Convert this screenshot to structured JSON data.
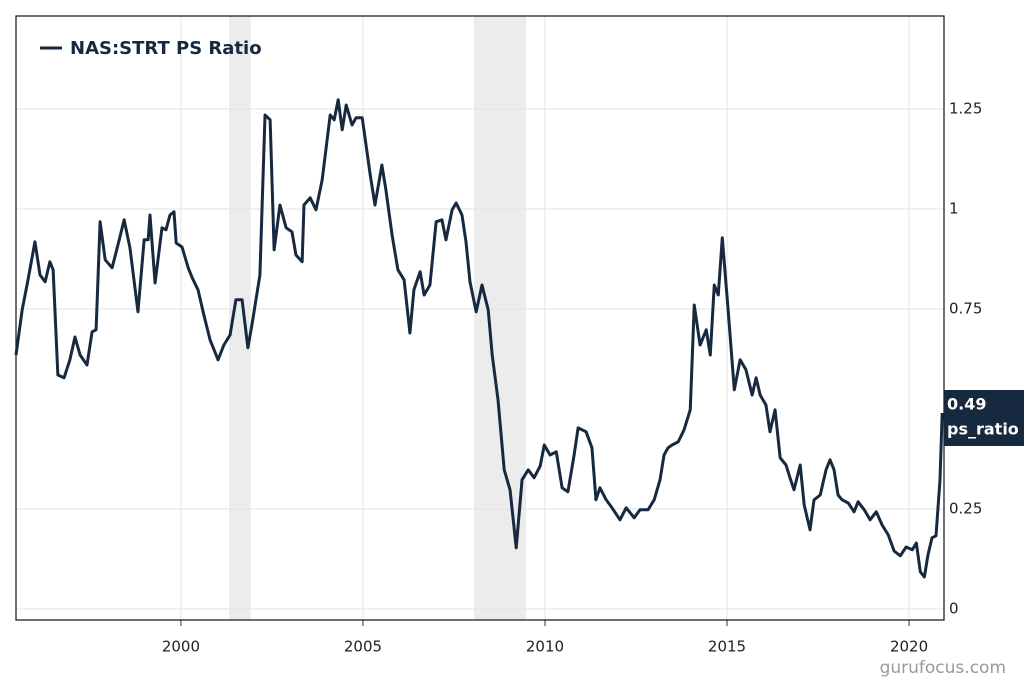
{
  "chart_data": {
    "type": "line",
    "legend": "NAS:STRT PS Ratio",
    "watermark": "gurufocus.com",
    "annotation": {
      "value": 0.49,
      "text": "ps_ratio"
    },
    "recessions": [
      [
        2001.32,
        2001.92
      ],
      [
        2008.05,
        2009.48
      ]
    ],
    "xlim": [
      1995.47,
      2020.96
    ],
    "xticks": [
      2000,
      2005,
      2010,
      2015,
      2020
    ],
    "ylim": [
      -0.0275,
      1.4825
    ],
    "yticks": [
      0,
      0.25,
      0.75,
      1,
      1.25
    ],
    "grid": true,
    "series": [
      {
        "name": "NAS:STRT PS Ratio",
        "color": "#17293f",
        "x": [
          1995.47,
          1995.64,
          1995.8,
          1995.99,
          1996.13,
          1996.27,
          1996.4,
          1996.49,
          1996.62,
          1996.79,
          1996.95,
          1997.09,
          1997.23,
          1997.42,
          1997.56,
          1997.67,
          1997.78,
          1997.92,
          1998.11,
          1998.27,
          1998.44,
          1998.6,
          1998.82,
          1998.99,
          1999.1,
          1999.15,
          1999.29,
          1999.48,
          1999.59,
          1999.7,
          1999.81,
          1999.87,
          2000.03,
          2000.2,
          2000.31,
          2000.47,
          2000.63,
          2000.8,
          2001.02,
          2001.18,
          2001.35,
          2001.51,
          2001.68,
          2001.84,
          2001.95,
          2002.17,
          2002.31,
          2002.45,
          2002.56,
          2002.72,
          2002.89,
          2003.05,
          2003.16,
          2003.33,
          2003.38,
          2003.55,
          2003.71,
          2003.88,
          2004.1,
          2004.21,
          2004.32,
          2004.43,
          2004.54,
          2004.7,
          2004.81,
          2004.98,
          2005.2,
          2005.33,
          2005.52,
          2005.63,
          2005.8,
          2005.96,
          2006.13,
          2006.29,
          2006.4,
          2006.57,
          2006.68,
          2006.84,
          2007.01,
          2007.17,
          2007.28,
          2007.45,
          2007.56,
          2007.72,
          2007.83,
          2007.94,
          2008.11,
          2008.27,
          2008.44,
          2008.55,
          2008.71,
          2008.88,
          2009.04,
          2009.21,
          2009.37,
          2009.54,
          2009.7,
          2009.87,
          2009.98,
          2010.14,
          2010.31,
          2010.47,
          2010.63,
          2010.8,
          2010.91,
          2011.13,
          2011.29,
          2011.4,
          2011.51,
          2011.68,
          2011.84,
          2012.06,
          2012.23,
          2012.45,
          2012.61,
          2012.83,
          2013.0,
          2013.16,
          2013.27,
          2013.38,
          2013.49,
          2013.66,
          2013.82,
          2013.99,
          2014.1,
          2014.26,
          2014.43,
          2014.54,
          2014.65,
          2014.76,
          2014.87,
          2015.03,
          2015.2,
          2015.36,
          2015.52,
          2015.69,
          2015.8,
          2015.91,
          2016.07,
          2016.18,
          2016.32,
          2016.46,
          2016.62,
          2016.73,
          2016.84,
          2017.01,
          2017.12,
          2017.28,
          2017.39,
          2017.56,
          2017.72,
          2017.83,
          2017.94,
          2018.05,
          2018.16,
          2018.33,
          2018.49,
          2018.6,
          2018.77,
          2018.93,
          2019.1,
          2019.26,
          2019.43,
          2019.59,
          2019.76,
          2019.92,
          2020.09,
          2020.2,
          2020.31,
          2020.42,
          2020.52,
          2020.63,
          2020.74,
          2020.85,
          2020.91
        ],
        "values": [
          0.635,
          0.748,
          0.823,
          0.918,
          0.835,
          0.818,
          0.868,
          0.848,
          0.585,
          0.578,
          0.623,
          0.68,
          0.635,
          0.61,
          0.693,
          0.698,
          0.968,
          0.873,
          0.853,
          0.91,
          0.973,
          0.903,
          0.743,
          0.923,
          0.923,
          0.985,
          0.815,
          0.953,
          0.948,
          0.985,
          0.993,
          0.915,
          0.905,
          0.853,
          0.828,
          0.798,
          0.735,
          0.673,
          0.623,
          0.66,
          0.685,
          0.773,
          0.773,
          0.653,
          0.71,
          0.835,
          1.235,
          1.223,
          0.898,
          1.01,
          0.953,
          0.943,
          0.885,
          0.868,
          1.01,
          1.028,
          0.998,
          1.073,
          1.235,
          1.223,
          1.273,
          1.198,
          1.26,
          1.21,
          1.228,
          1.228,
          1.085,
          1.01,
          1.11,
          1.048,
          0.935,
          0.848,
          0.823,
          0.69,
          0.798,
          0.843,
          0.785,
          0.81,
          0.968,
          0.973,
          0.923,
          0.998,
          1.015,
          0.985,
          0.918,
          0.818,
          0.743,
          0.81,
          0.748,
          0.635,
          0.523,
          0.348,
          0.298,
          0.153,
          0.323,
          0.348,
          0.328,
          0.358,
          0.41,
          0.385,
          0.393,
          0.303,
          0.293,
          0.385,
          0.453,
          0.443,
          0.403,
          0.273,
          0.303,
          0.273,
          0.253,
          0.223,
          0.253,
          0.228,
          0.248,
          0.248,
          0.273,
          0.323,
          0.385,
          0.403,
          0.41,
          0.418,
          0.448,
          0.498,
          0.76,
          0.66,
          0.698,
          0.635,
          0.81,
          0.785,
          0.928,
          0.748,
          0.548,
          0.623,
          0.598,
          0.535,
          0.578,
          0.535,
          0.51,
          0.443,
          0.498,
          0.378,
          0.36,
          0.328,
          0.298,
          0.36,
          0.26,
          0.198,
          0.273,
          0.285,
          0.348,
          0.373,
          0.348,
          0.285,
          0.273,
          0.265,
          0.243,
          0.268,
          0.248,
          0.223,
          0.243,
          0.21,
          0.185,
          0.145,
          0.133,
          0.155,
          0.148,
          0.165,
          0.093,
          0.08,
          0.135,
          0.178,
          0.183,
          0.323,
          0.49
        ]
      }
    ]
  }
}
